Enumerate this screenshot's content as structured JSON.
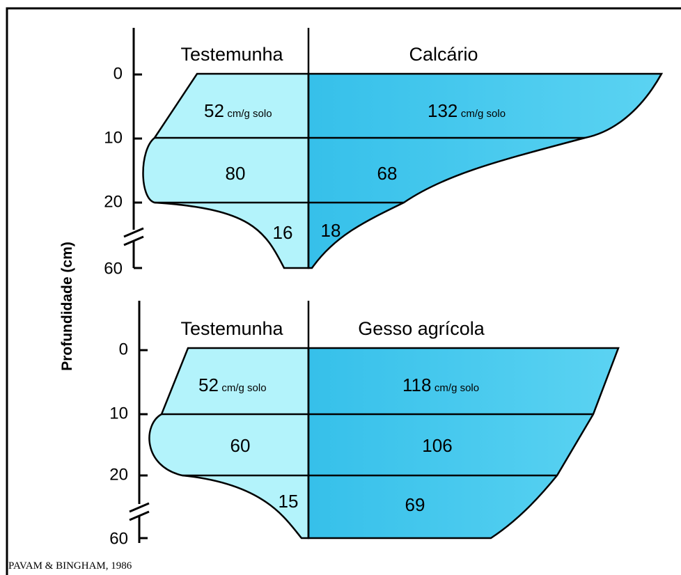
{
  "y_axis_label": "Profundidade (cm)",
  "panels": [
    {
      "left_header": "Testemunha",
      "right_header": "Calcário",
      "ticks": [
        0,
        10,
        20,
        60
      ],
      "left_values": [
        52,
        80,
        16
      ],
      "right_values": [
        132,
        68,
        18
      ],
      "unit": "cm/g solo"
    },
    {
      "left_header": "Testemunha",
      "right_header": "Gesso agrícola",
      "ticks": [
        0,
        10,
        20,
        60
      ],
      "left_values": [
        52,
        60,
        15
      ],
      "right_values": [
        118,
        106,
        69
      ],
      "unit": "cm/g solo"
    }
  ],
  "source": "PAVAM & BINGHAM, 1986"
}
